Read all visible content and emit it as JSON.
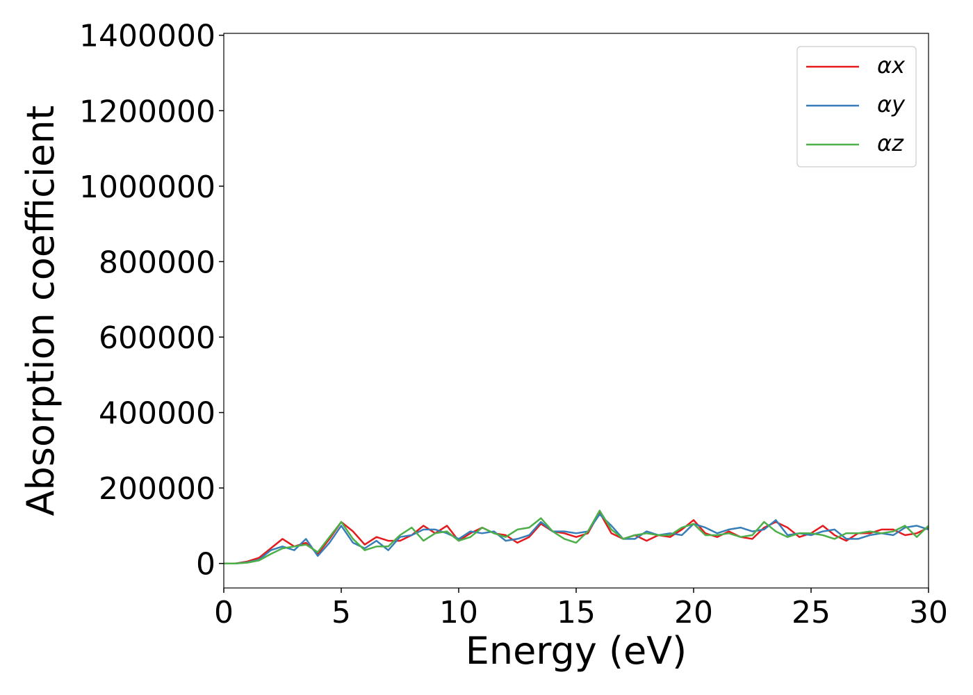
{
  "chart_data": {
    "type": "line",
    "xlabel": "Energy (eV)",
    "ylabel": "Absorption coefficient",
    "x": [
      0,
      0.5,
      1,
      1.5,
      2,
      2.5,
      3,
      3.5,
      4,
      4.5,
      5,
      5.5,
      6,
      6.5,
      7,
      7.5,
      8,
      8.5,
      9,
      9.5,
      10,
      10.5,
      11,
      11.5,
      12,
      12.5,
      13,
      13.5,
      14,
      14.5,
      15,
      15.5,
      16,
      16.5,
      17,
      17.5,
      18,
      18.5,
      19,
      19.5,
      20,
      20.5,
      21,
      21.5,
      22,
      22.5,
      23,
      23.5,
      24,
      24.5,
      25,
      25.5,
      26,
      26.5,
      27,
      27.5,
      28,
      28.5,
      29,
      29.5,
      30
    ],
    "series": [
      {
        "name": "αx",
        "color": "#e41a1c",
        "values": [
          0,
          0,
          5000,
          15000,
          40000,
          65000,
          45000,
          55000,
          25000,
          65000,
          110000,
          85000,
          50000,
          70000,
          60000,
          60000,
          75000,
          100000,
          80000,
          100000,
          60000,
          80000,
          95000,
          80000,
          75000,
          55000,
          70000,
          105000,
          85000,
          80000,
          70000,
          80000,
          135000,
          80000,
          65000,
          75000,
          60000,
          75000,
          70000,
          90000,
          115000,
          80000,
          70000,
          85000,
          70000,
          65000,
          95000,
          110000,
          95000,
          70000,
          80000,
          100000,
          75000,
          60000,
          80000,
          80000,
          90000,
          90000,
          75000,
          80000,
          95000
        ]
      },
      {
        "name": "αy",
        "color": "#377eb8",
        "values": [
          0,
          0,
          3000,
          10000,
          35000,
          45000,
          35000,
          65000,
          20000,
          55000,
          100000,
          55000,
          40000,
          60000,
          35000,
          70000,
          75000,
          90000,
          90000,
          80000,
          65000,
          85000,
          80000,
          85000,
          60000,
          65000,
          75000,
          110000,
          85000,
          85000,
          80000,
          85000,
          130000,
          100000,
          65000,
          65000,
          85000,
          75000,
          80000,
          75000,
          105000,
          95000,
          80000,
          90000,
          95000,
          85000,
          90000,
          115000,
          75000,
          80000,
          75000,
          85000,
          90000,
          65000,
          65000,
          75000,
          80000,
          75000,
          95000,
          100000,
          90000
        ]
      },
      {
        "name": "αz",
        "color": "#4daf4a",
        "values": [
          0,
          0,
          2000,
          8000,
          25000,
          40000,
          45000,
          50000,
          30000,
          70000,
          110000,
          65000,
          35000,
          45000,
          45000,
          75000,
          95000,
          60000,
          80000,
          85000,
          60000,
          70000,
          95000,
          80000,
          70000,
          90000,
          95000,
          120000,
          85000,
          65000,
          55000,
          85000,
          140000,
          90000,
          65000,
          75000,
          80000,
          75000,
          75000,
          95000,
          105000,
          75000,
          75000,
          80000,
          70000,
          75000,
          110000,
          85000,
          70000,
          80000,
          80000,
          75000,
          65000,
          80000,
          80000,
          85000,
          80000,
          85000,
          100000,
          70000,
          100000
        ]
      }
    ],
    "xlim": [
      0,
      30
    ],
    "xticks": [
      0,
      5,
      10,
      15,
      20,
      25,
      30
    ],
    "ylim": [
      -65000,
      1405000
    ],
    "yticks": [
      0,
      200000,
      400000,
      600000,
      800000,
      1000000,
      1200000,
      1400000
    ],
    "legend": "upper right"
  }
}
